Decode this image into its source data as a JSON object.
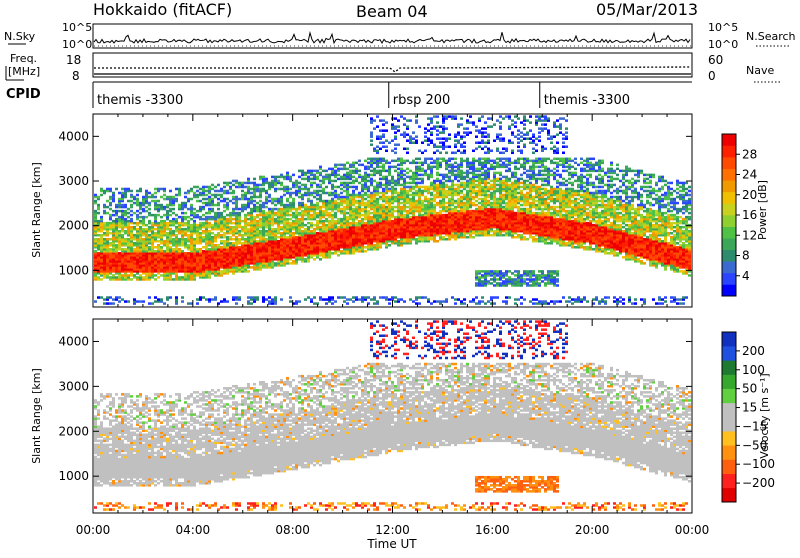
{
  "header": {
    "station": "Hokkaido (fitACF)",
    "beam": "Beam 04",
    "date": "05/Mar/2013"
  },
  "top_panels": {
    "nsky_label": "N.Sky",
    "nsky_ticks": [
      "10^5",
      "10^0"
    ],
    "nsearch_label": "N.Search",
    "nsearch_ticks": [
      "10^5",
      "10^0"
    ],
    "freq_label_1": "Freq.",
    "freq_label_2": "[MHz]",
    "freq_ticks": [
      "18",
      "8"
    ],
    "nave_label": "Nave",
    "nave_ticks": [
      "60",
      "0"
    ],
    "cpid_label": "CPID",
    "cpid_segments": [
      {
        "label": "themis -3300",
        "start_hour": 0.0
      },
      {
        "label": "rbsp 200",
        "start_hour": 11.85
      },
      {
        "label": "themis -3300",
        "start_hour": 17.9
      }
    ]
  },
  "colors": {
    "power_scale": [
      "#0000ff",
      "#2a44ff",
      "#3a6ad0",
      "#2e8c6e",
      "#3aa858",
      "#4fc245",
      "#8fd030",
      "#c8d21e",
      "#f0c000",
      "#f09a00",
      "#ff7000",
      "#ff4a00",
      "#ff2000",
      "#ee0000"
    ],
    "velocity_scale": [
      "#1030c0",
      "#2050e0",
      "#1e7a30",
      "#37a82e",
      "#60d040",
      "#c0c0c0",
      "#c0c0c0",
      "#ffc020",
      "#ff9010",
      "#ff6010",
      "#ff2020",
      "#e00000"
    ]
  },
  "chart_data": [
    {
      "type": "heatmap",
      "title": "",
      "xlabel": "",
      "ylabel": "Slant Range [km]",
      "xlim": [
        "00:00",
        "00:00"
      ],
      "ylim": [
        180,
        4500
      ],
      "y_ticks": [
        "1000",
        "2000",
        "3000",
        "4000"
      ],
      "colorbar": {
        "label": "Power [dB]",
        "min": 0,
        "max": 32,
        "ticks": [
          "4",
          "8",
          "12",
          "16",
          "20",
          "24",
          "28"
        ]
      },
      "features": [
        {
          "desc": "strong scatter band",
          "x_hours": [
            0,
            4,
            8,
            12,
            16,
            20,
            24
          ],
          "range_km": [
            1150,
            1150,
            1500,
            1900,
            2150,
            1800,
            1200
          ],
          "power_db": 28
        }
      ]
    },
    {
      "type": "heatmap",
      "title": "",
      "xlabel": "Time UT",
      "ylabel": "Slant Range [km]",
      "xlim": [
        "00:00",
        "00:00"
      ],
      "ylim": [
        180,
        4500
      ],
      "y_ticks": [
        "1000",
        "2000",
        "3000",
        "4000"
      ],
      "x_ticks": [
        "00:00",
        "04:00",
        "08:00",
        "12:00",
        "16:00",
        "20:00",
        "00:00"
      ],
      "colorbar": {
        "label": "Velocity [m s⁻¹]",
        "min": -250,
        "max": 250,
        "ticks": [
          "200",
          "100",
          "50",
          "15",
          "−15",
          "−50",
          "−100",
          "−200"
        ]
      },
      "features": [
        {
          "desc": "ground scatter band",
          "x_hours": [
            0,
            4,
            8,
            12,
            16,
            20,
            24
          ],
          "range_km": [
            1150,
            1150,
            1500,
            1900,
            2150,
            1800,
            1200
          ],
          "velocity_ms": 0
        }
      ]
    }
  ]
}
